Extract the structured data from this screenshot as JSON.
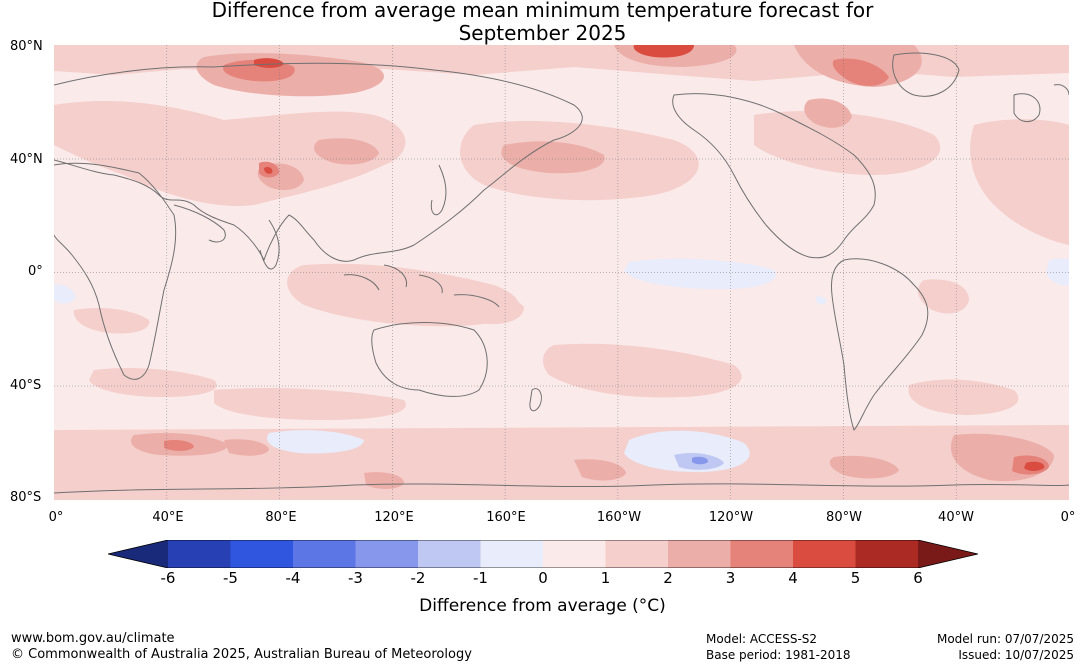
{
  "title_line1": "Difference from average mean minimum temperature forecast for",
  "title_line2": "September 2025",
  "lat_labels": [
    "80°N",
    "40°N",
    "0°",
    "40°S",
    "80°S"
  ],
  "lon_labels": [
    "0°",
    "40°E",
    "80°E",
    "120°E",
    "160°E",
    "160°W",
    "120°W",
    "80°W",
    "40°W",
    "0°"
  ],
  "colorbar": {
    "ticks": [
      "-6",
      "-5",
      "-4",
      "-3",
      "-2",
      "-1",
      "0",
      "1",
      "2",
      "3",
      "4",
      "5",
      "6"
    ],
    "colors": [
      "#1a2a7a",
      "#2740b4",
      "#3056e0",
      "#5d76e6",
      "#8797ec",
      "#bfc8f3",
      "#e9ecfa",
      "#fbeaea",
      "#f4cfcc",
      "#ecaea8",
      "#e5827a",
      "#db4c40",
      "#ab2b24",
      "#7a1a18"
    ],
    "label": "Difference from average (°C)"
  },
  "map_palette": {
    "ocean_base": "#fbeaea",
    "warm_1": "#f4cfcc",
    "warm_2": "#ecaea8",
    "warm_3": "#e5827a",
    "warm_4": "#db4c40",
    "cool_1": "#e9ecfa",
    "cool_2": "#bfc8f3",
    "cool_3": "#8797ec",
    "coast": "#707070"
  },
  "footer": {
    "website": "www.bom.gov.au/climate",
    "copyright": "© Commonwealth of Australia 2025, Australian Bureau of Meteorology",
    "model": "Model: ACCESS-S2",
    "base_period": "Base period: 1981-2018",
    "model_run": "Model run: 07/07/2025",
    "issued": "Issued: 10/07/2025"
  }
}
